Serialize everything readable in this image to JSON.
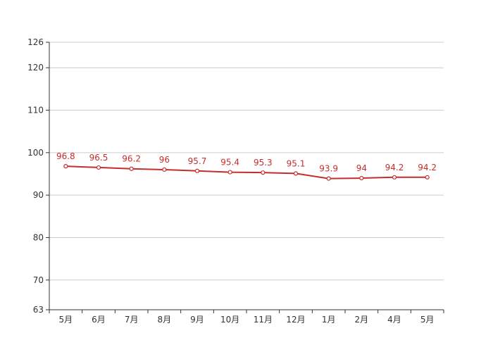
{
  "chart_data": {
    "type": "line",
    "title": "",
    "xlabel": "",
    "ylabel": "",
    "categories": [
      "5月",
      "6月",
      "7月",
      "8月",
      "9月",
      "10月",
      "11月",
      "12月",
      "1月",
      "2月",
      "4月",
      "5月"
    ],
    "series": [
      {
        "values": [
          96.8,
          96.5,
          96.2,
          96,
          95.7,
          95.4,
          95.3,
          95.1,
          93.9,
          94,
          94.2,
          94.2
        ]
      }
    ],
    "data_labels": [
      "96.8",
      "96.5",
      "96.2",
      "96",
      "95.7",
      "95.4",
      "95.3",
      "95.1",
      "93.9",
      "94",
      "94.2",
      "94.2"
    ],
    "ylim": [
      63,
      126
    ],
    "yticks": [
      63,
      70,
      80,
      90,
      100,
      110,
      120,
      126
    ],
    "grid": true,
    "legend": "none",
    "colors": {
      "line": "#c62d2d",
      "marker_fill": "#ffffff",
      "label": "#c62d2d",
      "grid": "#cccccc",
      "axis": "#333333"
    }
  }
}
